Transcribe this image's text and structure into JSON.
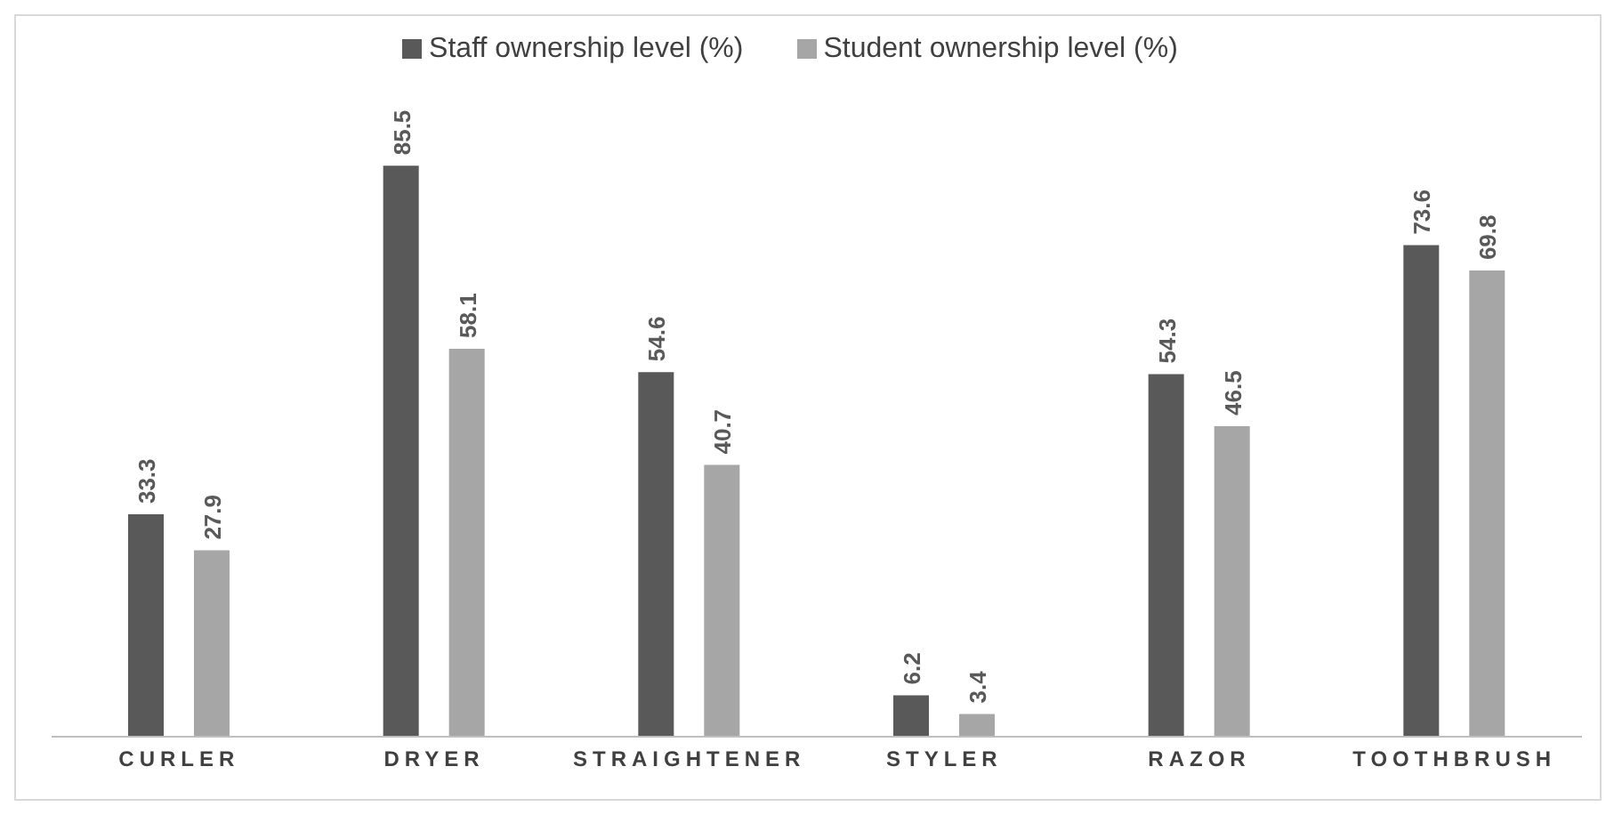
{
  "chart_data": {
    "type": "bar",
    "categories": [
      "CURLER",
      "DRYER",
      "STRAIGHTENER",
      "STYLER",
      "RAZOR",
      "TOOTHBRUSH"
    ],
    "series": [
      {
        "name": "Staff ownership level (%)",
        "color": "#595959",
        "values": [
          33.3,
          85.5,
          54.6,
          6.2,
          54.3,
          73.6
        ]
      },
      {
        "name": "Student ownership level (%)",
        "color": "#a6a6a6",
        "values": [
          27.9,
          58.1,
          40.7,
          3.4,
          46.5,
          69.8
        ]
      }
    ],
    "data_labels": true,
    "legend": "top",
    "grid": false
  }
}
